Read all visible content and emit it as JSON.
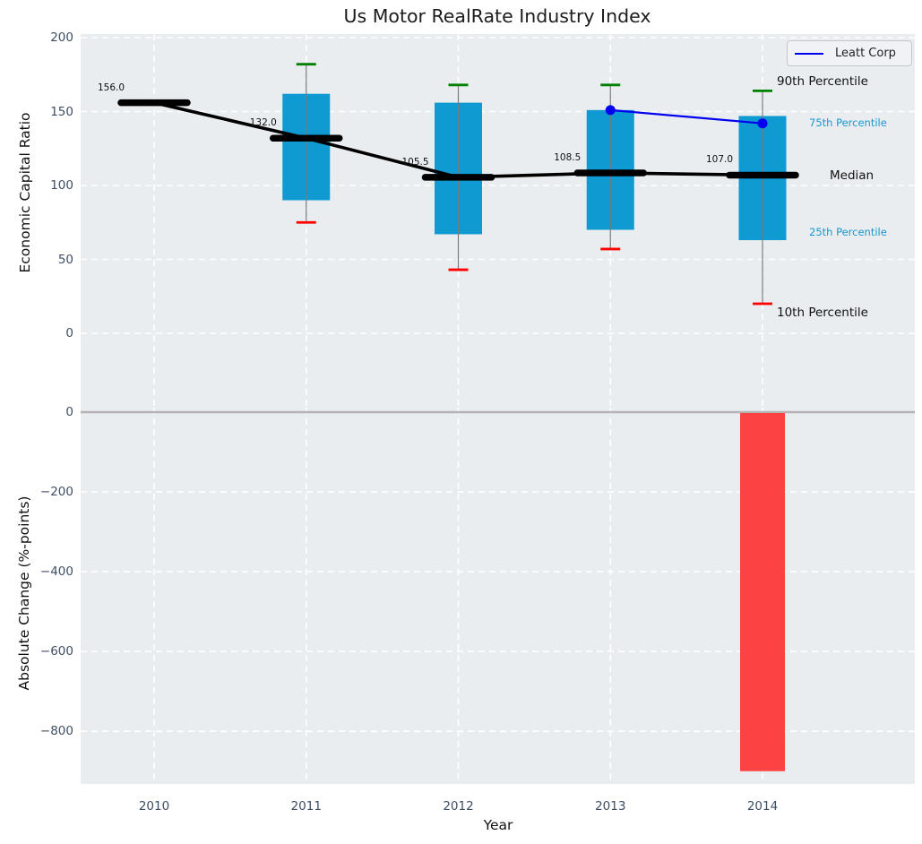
{
  "title": "Us Motor RealRate Industry Index",
  "legend": {
    "label": "Leatt Corp"
  },
  "axes": {
    "top": {
      "ylabel": "Economic Capital Ratio",
      "ytick_labels": [
        "200",
        "150",
        "100",
        "50",
        "0"
      ],
      "ytick_values": [
        200,
        150,
        100,
        50,
        0
      ]
    },
    "bottom": {
      "ylabel": "Absolute Change (%-points)",
      "xlabel": "Year",
      "ytick_labels": [
        "0",
        "−200",
        "−400",
        "−600",
        "−800"
      ],
      "ytick_values": [
        0,
        -200,
        -400,
        -600,
        -800
      ],
      "xtick_labels": [
        "2010",
        "2011",
        "2012",
        "2013",
        "2014"
      ]
    }
  },
  "annotations": {
    "p90": "90th Percentile",
    "p75": "75th Percentile",
    "median": "Median",
    "p25": "25th Percentile",
    "p10": "10th Percentile"
  },
  "colors": {
    "plot_background": "#e9edf0",
    "grid": "#ffffff",
    "box_fill": "#0f9ad2",
    "whisker_line": "#7a7a7a",
    "whisker_top_cap": "#008000",
    "whisker_bottom_cap": "#ff0000",
    "median_line": "#000000",
    "company_line": "#0000ee",
    "bar_negative": "#fc4242",
    "zero_line": "#b3b3b3",
    "tick_label": "#3e4e63",
    "percentile_label_accent": "#1598ce"
  },
  "chart_data": [
    {
      "type": "box",
      "title": "Us Motor RealRate Industry Index",
      "ylabel": "Economic Capital Ratio",
      "xlabel": "Year",
      "categories": [
        2010,
        2011,
        2012,
        2013,
        2014
      ],
      "series": [
        {
          "name": "Median",
          "values": [
            156.0,
            132.0,
            105.5,
            108.5,
            107.0
          ]
        },
        {
          "name": "90th Percentile",
          "values": [
            null,
            182,
            168,
            168,
            164
          ]
        },
        {
          "name": "75th Percentile",
          "values": [
            null,
            162,
            156,
            151,
            147
          ]
        },
        {
          "name": "25th Percentile",
          "values": [
            null,
            90,
            67,
            70,
            63
          ]
        },
        {
          "name": "10th Percentile",
          "values": [
            null,
            75,
            43,
            57,
            20
          ]
        }
      ],
      "median_labels": [
        "156.0",
        "132.0",
        "105.5",
        "108.5",
        "107.0"
      ],
      "overlay_line": {
        "name": "Leatt Corp",
        "x": [
          2013,
          2014
        ],
        "y": [
          151,
          142
        ]
      },
      "ylim": [
        -50,
        202
      ],
      "grid": true,
      "legend_position": "upper right"
    },
    {
      "type": "bar",
      "ylabel": "Absolute Change (%-points)",
      "xlabel": "Year",
      "categories": [
        2010,
        2011,
        2012,
        2013,
        2014
      ],
      "values": [
        null,
        null,
        null,
        null,
        -900
      ],
      "ylim": [
        -935,
        11
      ],
      "grid": true,
      "zero_line": true
    }
  ]
}
